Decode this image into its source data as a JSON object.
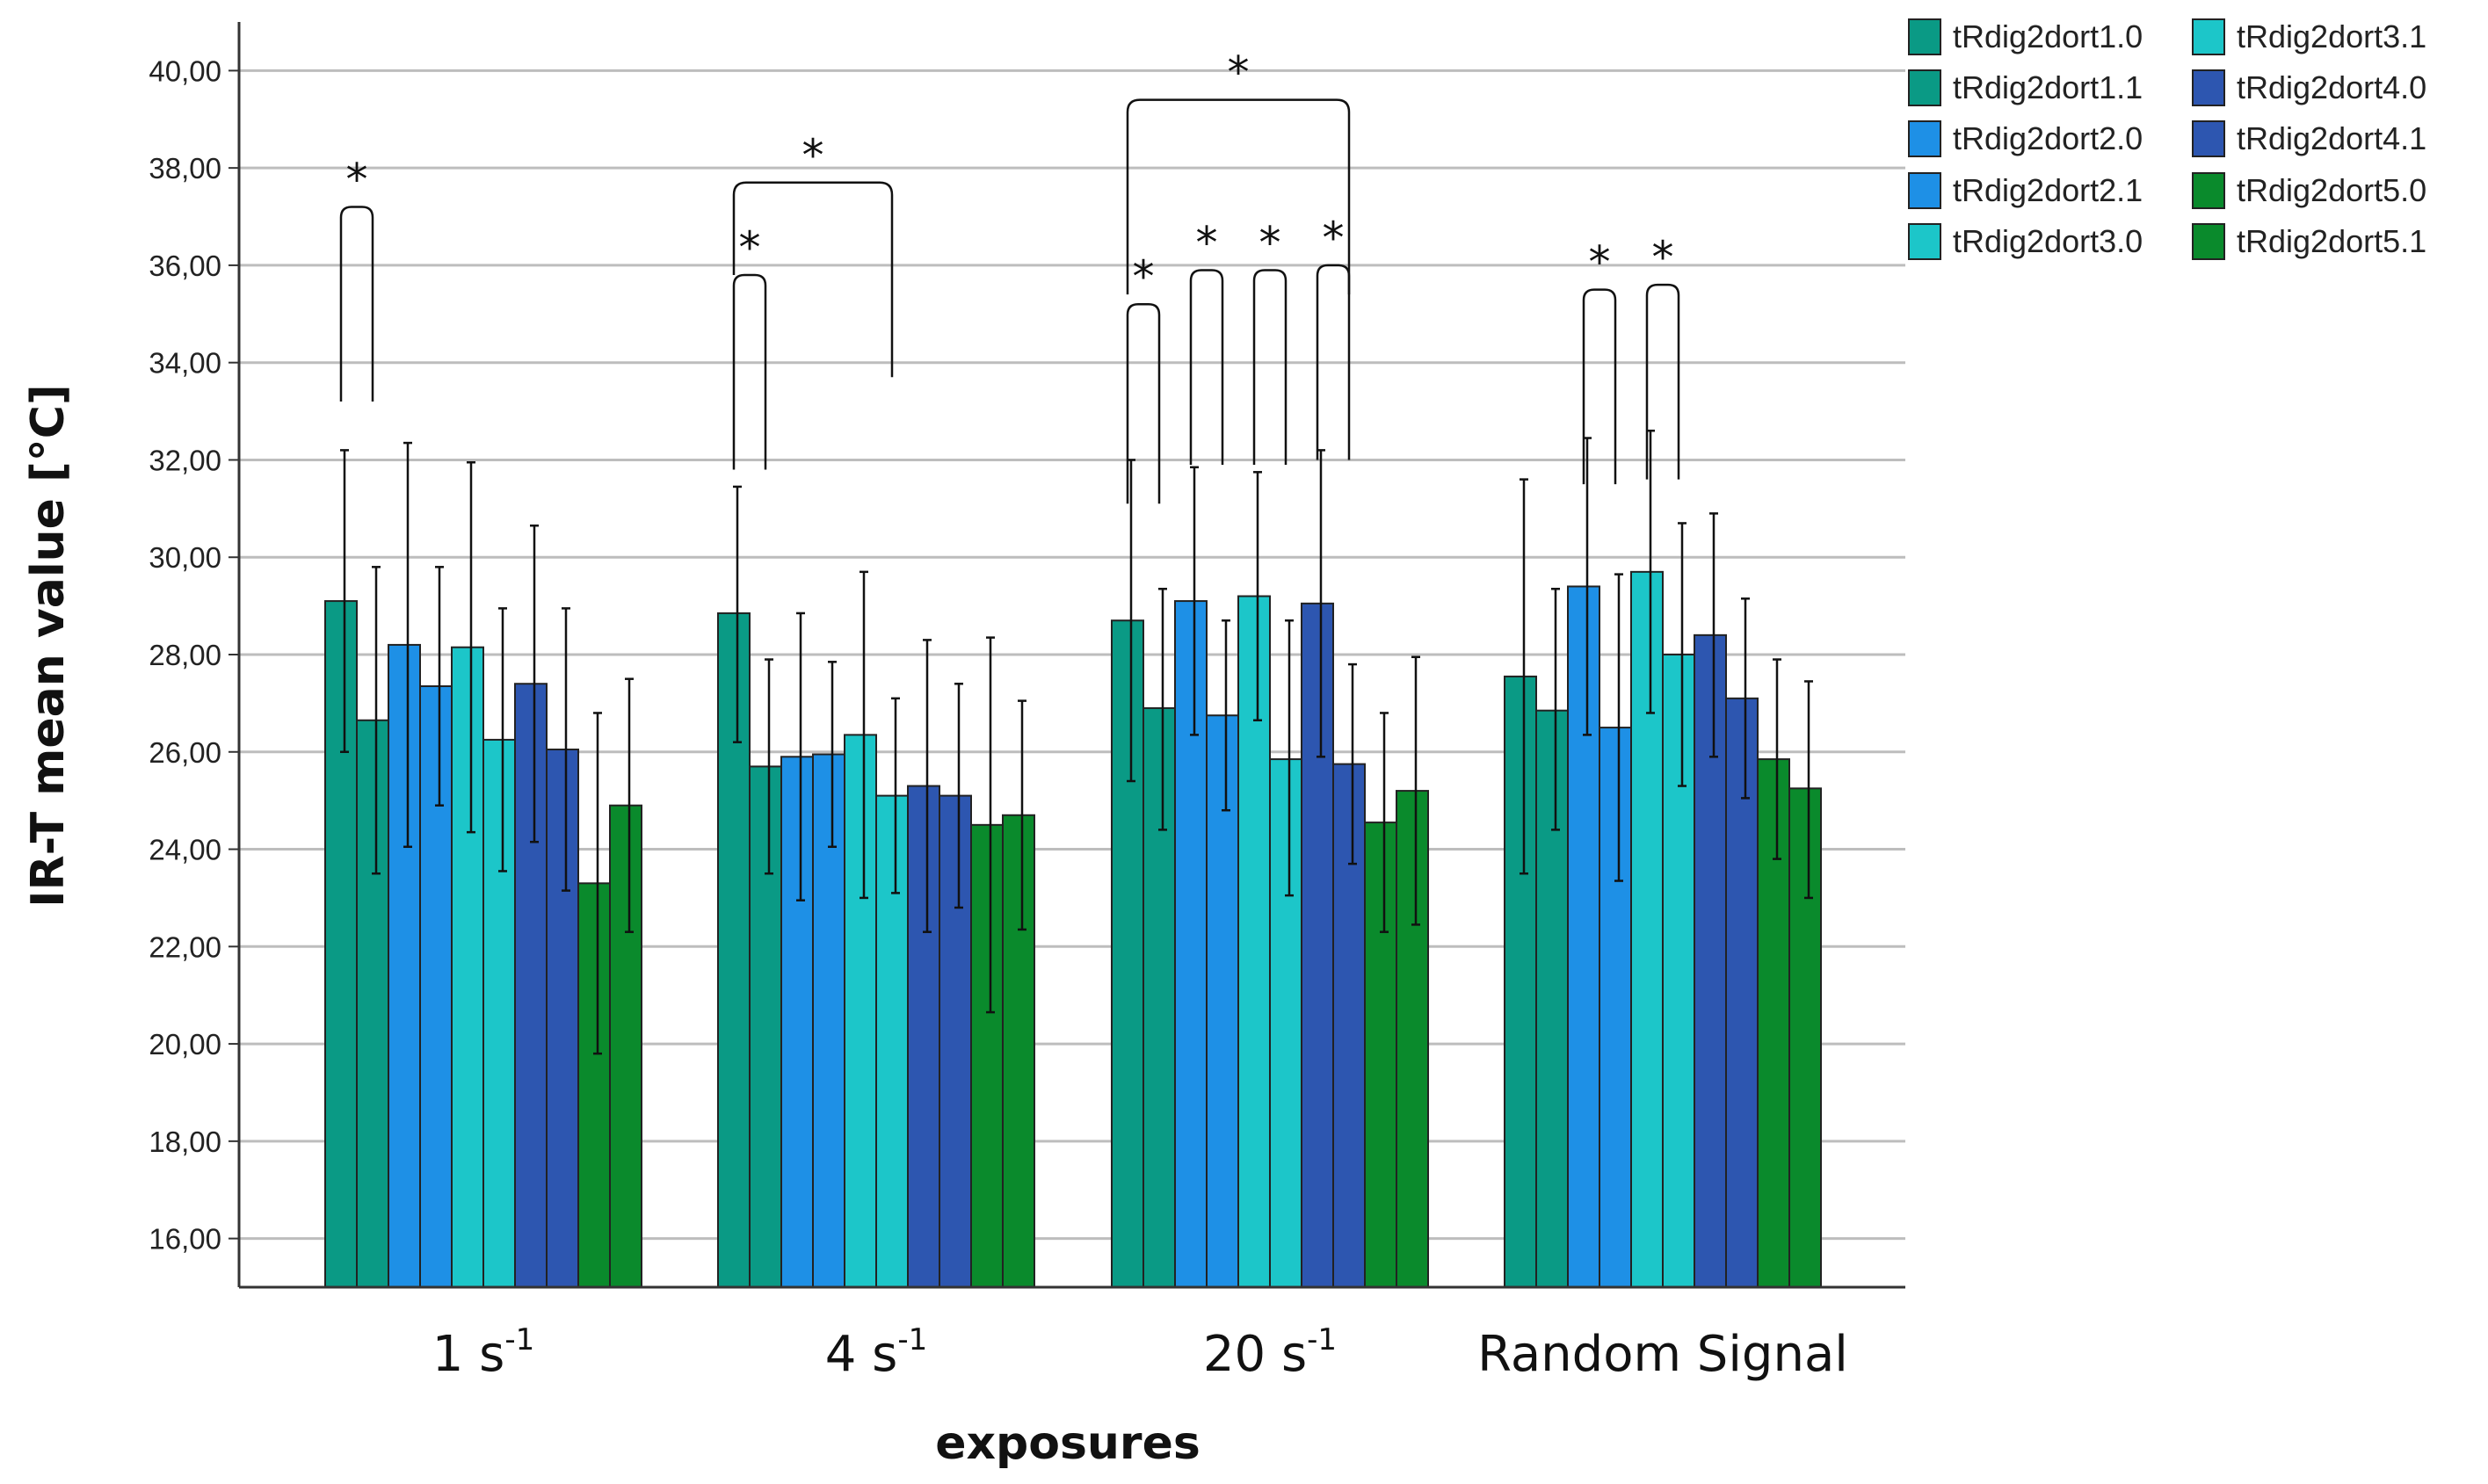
{
  "chart_data": {
    "type": "bar",
    "title": "",
    "xlabel": "exposures",
    "ylabel": "IR-T  mean value  [°C]",
    "ylim": [
      15,
      41
    ],
    "yticks": [
      "16,00",
      "18,00",
      "20,00",
      "22,00",
      "24,00",
      "26,00",
      "28,00",
      "30,00",
      "32,00",
      "34,00",
      "36,00",
      "38,00",
      "40,00"
    ],
    "ytick_values": [
      16,
      18,
      20,
      22,
      24,
      26,
      28,
      30,
      32,
      34,
      36,
      38,
      40
    ],
    "grid": true,
    "legend_position": "top-right",
    "categories": [
      {
        "base": "1 s",
        "sup": "-1"
      },
      {
        "base": "4 s",
        "sup": "-1"
      },
      {
        "base": "20 s",
        "sup": "-1"
      },
      {
        "base": "Random Signal",
        "sup": ""
      }
    ],
    "series": [
      {
        "name": "tRdig2dort1.0",
        "color": "#0a9a85",
        "values": [
          29.1,
          28.85,
          28.7,
          27.55
        ],
        "err_high": [
          32.2,
          31.45,
          32.0,
          31.6
        ],
        "err_low": [
          26.0,
          26.2,
          25.4,
          23.5
        ]
      },
      {
        "name": "tRdig2dort1.1",
        "color": "#0a9a85",
        "values": [
          26.65,
          25.7,
          26.9,
          26.85
        ],
        "err_high": [
          29.8,
          27.9,
          29.35,
          29.35
        ],
        "err_low": [
          23.5,
          23.5,
          24.4,
          24.4
        ]
      },
      {
        "name": "tRdig2dort2.0",
        "color": "#1e90e6",
        "values": [
          28.2,
          25.9,
          29.1,
          29.4
        ],
        "err_high": [
          32.35,
          28.85,
          31.85,
          32.45
        ],
        "err_low": [
          24.05,
          22.95,
          26.35,
          26.35
        ]
      },
      {
        "name": "tRdig2dort2.1",
        "color": "#1e90e6",
        "values": [
          27.35,
          25.95,
          26.75,
          26.5
        ],
        "err_high": [
          29.8,
          27.85,
          28.7,
          29.65
        ],
        "err_low": [
          24.9,
          24.05,
          24.8,
          23.35
        ]
      },
      {
        "name": "tRdig2dort3.0",
        "color": "#1cc6c9",
        "values": [
          28.15,
          26.35,
          29.2,
          29.7
        ],
        "err_high": [
          31.95,
          29.7,
          31.75,
          32.6
        ],
        "err_low": [
          24.35,
          23.0,
          26.65,
          26.8
        ]
      },
      {
        "name": "tRdig2dort3.1",
        "color": "#1cc6c9",
        "values": [
          26.25,
          25.1,
          25.85,
          28.0
        ],
        "err_high": [
          28.95,
          27.1,
          28.7,
          30.7
        ],
        "err_low": [
          23.55,
          23.1,
          23.05,
          25.3
        ]
      },
      {
        "name": "tRdig2dort4.0",
        "color": "#2d56b0",
        "values": [
          27.4,
          25.3,
          29.05,
          28.4
        ],
        "err_high": [
          30.65,
          28.3,
          32.2,
          30.9
        ],
        "err_low": [
          24.15,
          22.3,
          25.9,
          25.9
        ]
      },
      {
        "name": "tRdig2dort4.1",
        "color": "#2d56b0",
        "values": [
          26.05,
          25.1,
          25.75,
          27.1
        ],
        "err_high": [
          28.95,
          27.4,
          27.8,
          29.15
        ],
        "err_low": [
          23.15,
          22.8,
          23.7,
          25.05
        ]
      },
      {
        "name": "tRdig2dort5.0",
        "color": "#0a8a2c",
        "values": [
          23.3,
          24.5,
          24.55,
          25.85
        ],
        "err_high": [
          26.8,
          28.35,
          26.8,
          27.9
        ],
        "err_low": [
          19.8,
          20.65,
          22.3,
          23.8
        ]
      },
      {
        "name": "tRdig2dort5.1",
        "color": "#0a8a2c",
        "values": [
          24.9,
          24.7,
          25.2,
          25.25
        ],
        "err_high": [
          27.5,
          27.05,
          27.95,
          27.45
        ],
        "err_low": [
          22.3,
          22.35,
          22.45,
          23.0
        ]
      }
    ],
    "significance_brackets": [
      {
        "category": 0,
        "from_series": 0,
        "to_series": 1,
        "left_y": 33.2,
        "right_y": 33.2,
        "top_y": 37.2
      },
      {
        "category": 1,
        "from_series": 0,
        "to_series": 1,
        "left_y": 31.8,
        "right_y": 31.8,
        "top_y": 35.8
      },
      {
        "category": 1,
        "from_series": 0,
        "to_series": 5,
        "left_y": 35.8,
        "right_y": 33.7,
        "top_y": 37.7
      },
      {
        "category": 2,
        "from_series": 0,
        "to_series": 1,
        "left_y": 31.1,
        "right_y": 31.1,
        "top_y": 35.2
      },
      {
        "category": 2,
        "from_series": 2,
        "to_series": 3,
        "left_y": 31.9,
        "right_y": 31.9,
        "top_y": 35.9
      },
      {
        "category": 2,
        "from_series": 4,
        "to_series": 5,
        "left_y": 31.9,
        "right_y": 31.9,
        "top_y": 35.9
      },
      {
        "category": 2,
        "from_series": 6,
        "to_series": 7,
        "left_y": 32.0,
        "right_y": 32.0,
        "top_y": 36.0
      },
      {
        "category": 2,
        "from_series": 0,
        "to_series": 7,
        "left_y": 35.4,
        "right_y": 35.4,
        "top_y": 39.4
      },
      {
        "category": 3,
        "from_series": 2,
        "to_series": 3,
        "left_y": 31.5,
        "right_y": 31.5,
        "top_y": 35.5
      },
      {
        "category": 3,
        "from_series": 4,
        "to_series": 5,
        "left_y": 31.6,
        "right_y": 31.6,
        "top_y": 35.6
      }
    ],
    "significance_marker": "*"
  },
  "colors": {
    "axis": "#333333",
    "grid": "#bdbdbd",
    "bar_stroke": "#222222"
  }
}
